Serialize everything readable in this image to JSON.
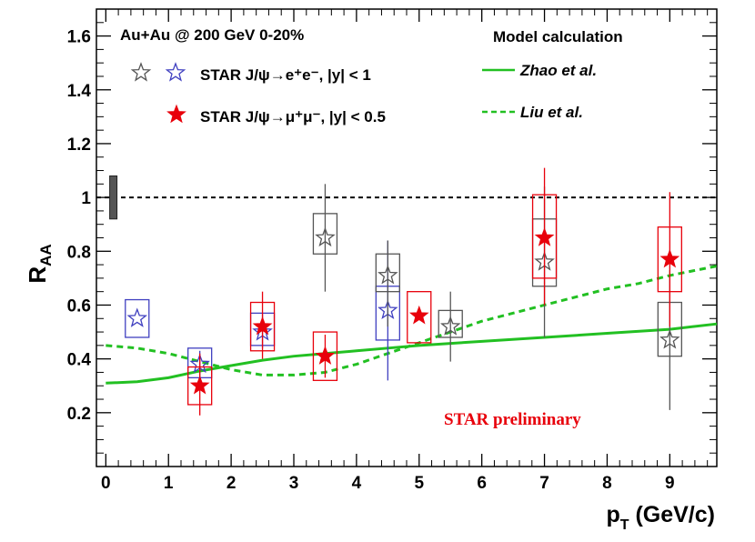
{
  "chart_data": {
    "type": "scatter",
    "title": "Au+Au @ 200 GeV 0-20%",
    "xlabel": {
      "main": "p",
      "sub": "T",
      "rest": " (GeV/c)"
    },
    "ylabel": {
      "main": "R",
      "sub": "AA"
    },
    "xlim": [
      -0.15,
      9.75
    ],
    "ylim": [
      0.0,
      1.7
    ],
    "x_ticks": [
      0,
      1,
      2,
      3,
      4,
      5,
      6,
      7,
      8,
      9
    ],
    "x_tick_labels": [
      "0",
      "1",
      "2",
      "3",
      "4",
      "5",
      "6",
      "7",
      "8",
      "9"
    ],
    "y_ticks": [
      0.2,
      0.4,
      0.6,
      0.8,
      1.0,
      1.2,
      1.4,
      1.6
    ],
    "y_tick_labels": [
      "0.2",
      "0.4",
      "0.6",
      "0.8",
      "1",
      "1.2",
      "1.4",
      "1.6"
    ],
    "reference_line": {
      "y": 1.0,
      "style": "dashed",
      "color": "#000000"
    },
    "global_uncertainty_band": {
      "x": 0.12,
      "y_low": 0.92,
      "y_high": 1.08
    },
    "preliminary_label": "STAR preliminary",
    "legend": {
      "ee_label": "STAR J/ψ→e⁺e⁻, |y| < 1",
      "mumu_label": "STAR J/ψ→μ⁺μ⁻, |y| < 0.5",
      "model_header": "Model calculation",
      "zhao_label": "Zhao et al.",
      "liu_label": "Liu et al."
    },
    "series": [
      {
        "name": "STAR J/ψ→e⁺e⁻ (low pT)",
        "color": "#4040c0",
        "marker": "open-star",
        "points": [
          {
            "x": 0.5,
            "y": 0.55,
            "stat_low": 0.55,
            "stat_high": 0.55,
            "sys_low": 0.48,
            "sys_high": 0.62
          },
          {
            "x": 1.5,
            "y": 0.38,
            "stat_low": 0.33,
            "stat_high": 0.43,
            "sys_low": 0.33,
            "sys_high": 0.44
          },
          {
            "x": 2.5,
            "y": 0.5,
            "stat_low": 0.44,
            "stat_high": 0.57,
            "sys_low": 0.45,
            "sys_high": 0.57
          },
          {
            "x": 4.5,
            "y": 0.58,
            "stat_low": 0.32,
            "stat_high": 0.84,
            "sys_low": 0.47,
            "sys_high": 0.67
          }
        ]
      },
      {
        "name": "STAR J/ψ→e⁺e⁻ (high pT)",
        "color": "#555555",
        "marker": "open-star",
        "points": [
          {
            "x": 3.5,
            "y": 0.85,
            "stat_low": 0.65,
            "stat_high": 1.05,
            "sys_low": 0.79,
            "sys_high": 0.94
          },
          {
            "x": 4.5,
            "y": 0.71,
            "stat_low": 0.52,
            "stat_high": 0.84,
            "sys_low": 0.65,
            "sys_high": 0.79
          },
          {
            "x": 5.5,
            "y": 0.52,
            "stat_low": 0.39,
            "stat_high": 0.65,
            "sys_low": 0.48,
            "sys_high": 0.58
          },
          {
            "x": 7.0,
            "y": 0.76,
            "stat_low": 0.48,
            "stat_high": 1.04,
            "sys_low": 0.67,
            "sys_high": 0.92
          },
          {
            "x": 9.0,
            "y": 0.47,
            "stat_low": 0.21,
            "stat_high": 0.73,
            "sys_low": 0.41,
            "sys_high": 0.61
          }
        ]
      },
      {
        "name": "STAR J/ψ→μ⁺μ⁻",
        "color": "#e8000b",
        "marker": "filled-star",
        "points": [
          {
            "x": 1.5,
            "y": 0.3,
            "stat_low": 0.19,
            "stat_high": 0.42,
            "sys_low": 0.23,
            "sys_high": 0.37
          },
          {
            "x": 2.5,
            "y": 0.52,
            "stat_low": 0.4,
            "stat_high": 0.65,
            "sys_low": 0.43,
            "sys_high": 0.61
          },
          {
            "x": 3.5,
            "y": 0.41,
            "stat_low": 0.33,
            "stat_high": 0.49,
            "sys_low": 0.32,
            "sys_high": 0.5
          },
          {
            "x": 5.0,
            "y": 0.56,
            "stat_low": 0.56,
            "stat_high": 0.56,
            "sys_low": 0.46,
            "sys_high": 0.65
          },
          {
            "x": 7.0,
            "y": 0.85,
            "stat_low": 0.6,
            "stat_high": 1.11,
            "sys_low": 0.7,
            "sys_high": 1.01
          },
          {
            "x": 9.0,
            "y": 0.77,
            "stat_low": 0.52,
            "stat_high": 1.02,
            "sys_low": 0.65,
            "sys_high": 0.89
          }
        ]
      }
    ],
    "model_curves": [
      {
        "name": "Zhao et al.",
        "style": "solid",
        "color": "#22c022",
        "x": [
          0.0,
          0.5,
          1.0,
          1.5,
          2.0,
          2.5,
          3.0,
          3.5,
          4.0,
          4.5,
          5.0,
          6.0,
          7.0,
          8.0,
          9.0,
          9.75
        ],
        "y": [
          0.31,
          0.315,
          0.33,
          0.355,
          0.375,
          0.395,
          0.41,
          0.42,
          0.43,
          0.44,
          0.45,
          0.465,
          0.48,
          0.495,
          0.51,
          0.53
        ]
      },
      {
        "name": "Liu et al.",
        "style": "dashed",
        "color": "#22c022",
        "x": [
          0.0,
          0.5,
          1.0,
          1.5,
          2.0,
          2.5,
          3.0,
          3.5,
          4.0,
          4.5,
          5.0,
          5.5,
          6.0,
          6.5,
          7.0,
          7.5,
          8.0,
          8.5,
          9.0,
          9.75
        ],
        "y": [
          0.45,
          0.44,
          0.42,
          0.39,
          0.36,
          0.34,
          0.34,
          0.35,
          0.38,
          0.42,
          0.46,
          0.5,
          0.54,
          0.57,
          0.6,
          0.63,
          0.66,
          0.68,
          0.71,
          0.745
        ]
      }
    ]
  }
}
